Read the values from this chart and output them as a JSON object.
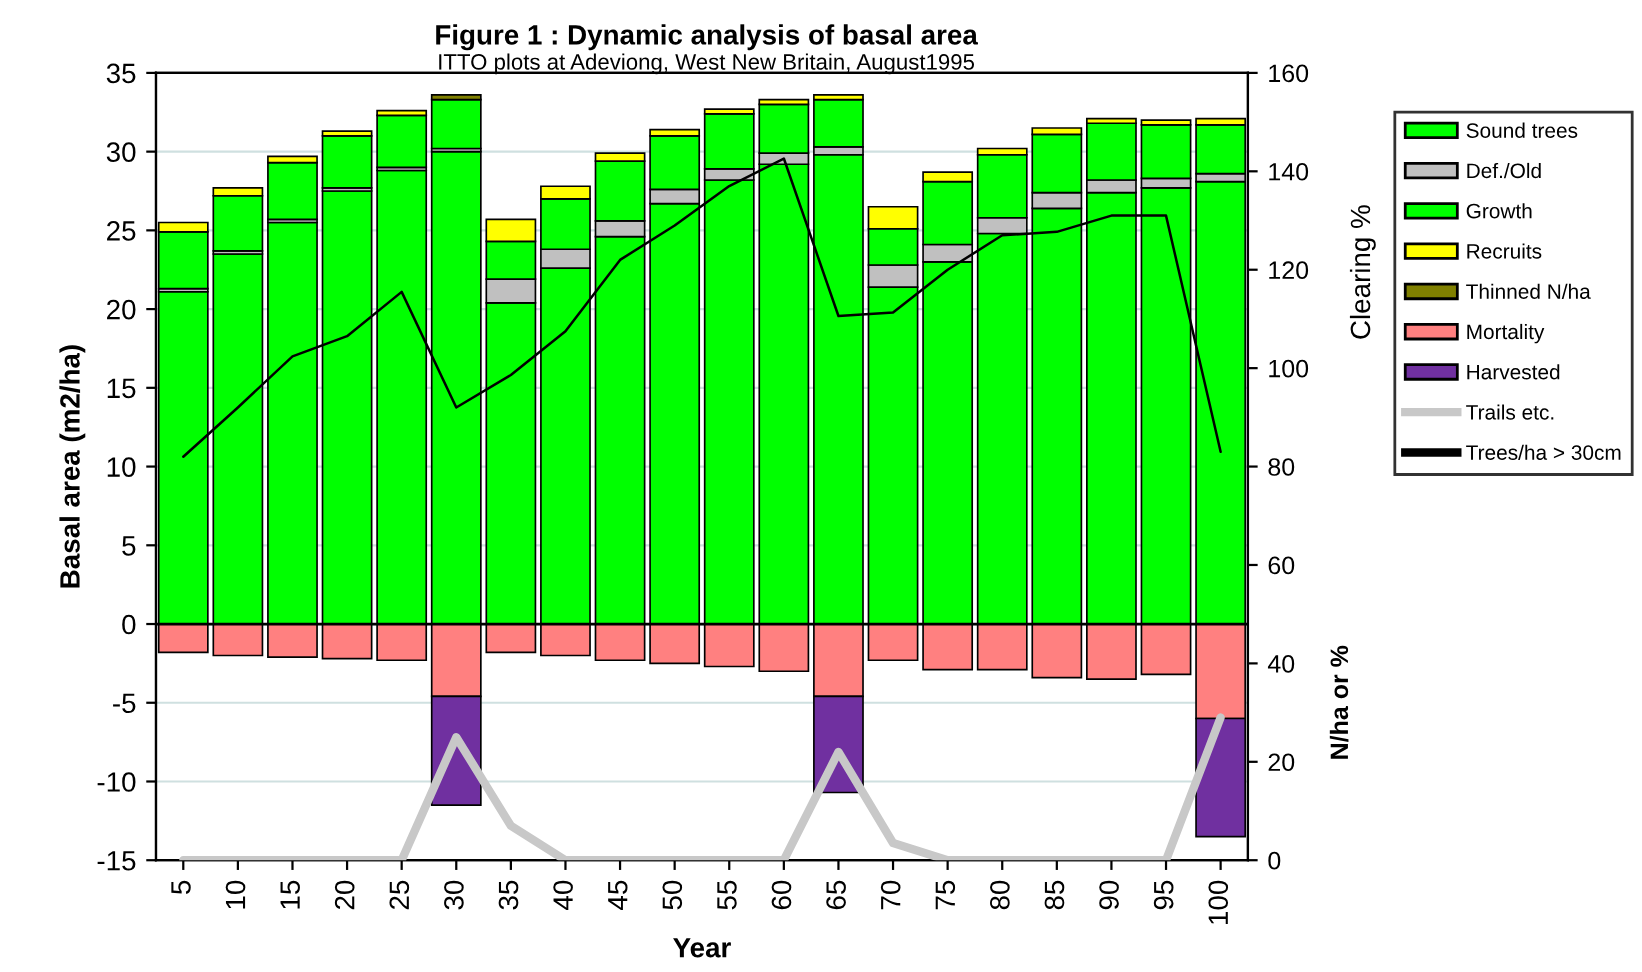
{
  "chart_data": {
    "type": "bar",
    "stacked": true,
    "title": "Figure 1 : Dynamic analysis of basal area",
    "subtitle": "ITTO plots at Adeviong, West New Britain, August1995",
    "xlabel": "Year",
    "ylabel": "Basal area (m2/ha)",
    "y2label": "N/ha or %",
    "annotations": [
      "Clearing %"
    ],
    "categories": [
      "5",
      "10",
      "15",
      "20",
      "25",
      "30",
      "35",
      "40",
      "45",
      "50",
      "55",
      "60",
      "65",
      "70",
      "75",
      "80",
      "85",
      "90",
      "95",
      "100"
    ],
    "series": [
      {
        "name": "Sound trees",
        "color": "#00ff00",
        "values": [
          21.1,
          23.5,
          25.5,
          27.5,
          28.8,
          30.0,
          20.4,
          22.6,
          24.6,
          26.7,
          28.2,
          29.2,
          29.8,
          21.4,
          23.0,
          24.8,
          26.4,
          27.4,
          27.7,
          28.1
        ]
      },
      {
        "name": "Def./Old",
        "color": "#c0c0c0",
        "values": [
          0.2,
          0.2,
          0.2,
          0.2,
          0.2,
          0.2,
          1.5,
          1.2,
          1.0,
          0.9,
          0.7,
          0.7,
          0.5,
          1.4,
          1.1,
          1.0,
          1.0,
          0.8,
          0.6,
          0.5
        ]
      },
      {
        "name": "Growth",
        "color": "#00ff00",
        "values": [
          3.6,
          3.5,
          3.6,
          3.3,
          3.3,
          3.1,
          2.4,
          3.2,
          3.8,
          3.4,
          3.5,
          3.1,
          3.0,
          2.3,
          4.0,
          4.0,
          3.7,
          3.6,
          3.4,
          3.1
        ]
      },
      {
        "name": "Recruits",
        "color": "#ffff00",
        "values": [
          0.6,
          0.5,
          0.4,
          0.3,
          0.3,
          null,
          1.4,
          0.8,
          0.5,
          0.4,
          0.3,
          0.3,
          0.3,
          1.4,
          0.6,
          0.4,
          0.4,
          0.3,
          0.3,
          0.4
        ]
      },
      {
        "name": "Thinned N/ha",
        "color": "#808000",
        "values": [
          null,
          null,
          null,
          null,
          null,
          0.3,
          null,
          null,
          null,
          null,
          null,
          null,
          null,
          null,
          null,
          null,
          null,
          null,
          null,
          null
        ]
      },
      {
        "name": "Mortality",
        "color": "#ff8080",
        "values": [
          -1.8,
          -2.0,
          -2.1,
          -2.2,
          -2.3,
          -4.6,
          -1.8,
          -2.0,
          -2.3,
          -2.5,
          -2.7,
          -3.0,
          -4.6,
          -2.3,
          -2.9,
          -2.9,
          -3.4,
          -3.5,
          -3.2,
          -6.0
        ]
      },
      {
        "name": "Harvested",
        "color": "#7030a0",
        "values": [
          null,
          null,
          null,
          null,
          null,
          -6.9,
          null,
          null,
          null,
          null,
          null,
          null,
          -6.1,
          null,
          null,
          null,
          null,
          null,
          null,
          -7.5
        ]
      },
      {
        "name": "Trails etc.",
        "type": "line",
        "axis": "y2",
        "color": "#c8c8c8",
        "values": [
          0,
          0,
          0,
          0,
          0,
          25,
          7,
          0,
          0,
          0,
          0,
          0,
          22,
          3.5,
          0,
          0,
          0,
          0,
          0,
          29
        ]
      },
      {
        "name": "Trees/ha > 30cm",
        "type": "line",
        "axis": "y2",
        "color": "#000000",
        "values": [
          82,
          92,
          102.4,
          106.5,
          115.5,
          92,
          98.6,
          107.5,
          122,
          129,
          137,
          142.6,
          110.6,
          111.3,
          120,
          127,
          127.7,
          131,
          131,
          83
        ]
      }
    ],
    "ylim": [
      -15,
      35
    ],
    "yticks": [
      -15,
      -10,
      -5,
      0,
      5,
      10,
      15,
      20,
      25,
      30,
      35
    ],
    "y2lim": [
      0,
      160
    ],
    "y2ticks": [
      0,
      20,
      40,
      60,
      80,
      100,
      120,
      140,
      160
    ],
    "grid": "y",
    "legend": "right"
  }
}
